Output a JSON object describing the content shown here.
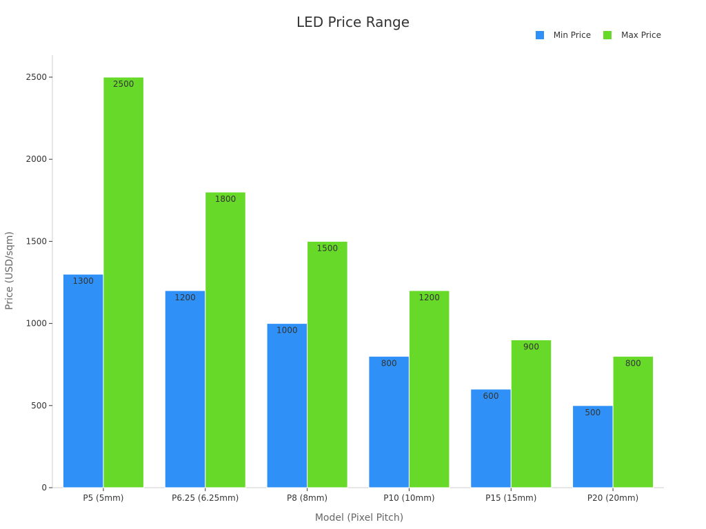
{
  "chart_data": {
    "type": "bar",
    "title": "LED Price Range",
    "xlabel": "Model (Pixel Pitch)",
    "ylabel": "Price (USD/sqm)",
    "ylim": [
      0,
      2500
    ],
    "yticks": [
      0,
      500,
      1000,
      1500,
      2000,
      2500
    ],
    "categories": [
      "P5 (5mm)",
      "P6.25 (6.25mm)",
      "P8 (8mm)",
      "P10 (10mm)",
      "P15 (15mm)",
      "P20 (20mm)"
    ],
    "series": [
      {
        "name": "Min Price",
        "color": "#2f91f7",
        "values": [
          1300,
          1200,
          1000,
          800,
          600,
          500
        ]
      },
      {
        "name": "Max Price",
        "color": "#66d929",
        "values": [
          2500,
          1800,
          1500,
          1200,
          900,
          800
        ]
      }
    ],
    "legend_position": "top-right",
    "grid": false
  }
}
